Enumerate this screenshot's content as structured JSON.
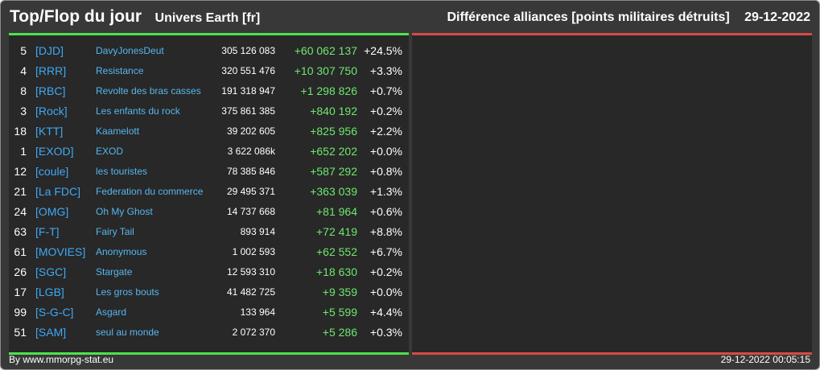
{
  "header": {
    "title": "Top/Flop du jour",
    "server": "Univers Earth [fr]",
    "category": "Différence alliances [points militaires détruits]",
    "date": "29-12-2022"
  },
  "colors": {
    "top_accent": "#4de24d",
    "flop_accent": "#d64b45",
    "tag": "#3fa9f5",
    "name": "#56b6ee",
    "gain": "#6ee86e"
  },
  "top_rows": [
    {
      "rank": "5",
      "tag": "[DJD]",
      "name": "DavyJonesDeut",
      "points": "305 126 083",
      "diff": "+60 062 137",
      "pct": "+24.5%"
    },
    {
      "rank": "4",
      "tag": "[RRR]",
      "name": "Resistance",
      "points": "320 551 476",
      "diff": "+10 307 750",
      "pct": "+3.3%"
    },
    {
      "rank": "8",
      "tag": "[RBC]",
      "name": "Revolte des bras casses",
      "points": "191 318 947",
      "diff": "+1 298 826",
      "pct": "+0.7%"
    },
    {
      "rank": "3",
      "tag": "[Rock]",
      "name": "Les enfants du rock",
      "points": "375 861 385",
      "diff": "+840 192",
      "pct": "+0.2%"
    },
    {
      "rank": "18",
      "tag": "[KTT]",
      "name": "Kaamelott",
      "points": "39 202 605",
      "diff": "+825 956",
      "pct": "+2.2%"
    },
    {
      "rank": "1",
      "tag": "[EXOD]",
      "name": "EXOD",
      "points": "3 622 086k",
      "diff": "+652 202",
      "pct": "+0.0%"
    },
    {
      "rank": "12",
      "tag": "[coule]",
      "name": "les touristes",
      "points": "78 385 846",
      "diff": "+587 292",
      "pct": "+0.8%"
    },
    {
      "rank": "21",
      "tag": "[La FDC]",
      "name": "Federation du commerce",
      "points": "29 495 371",
      "diff": "+363 039",
      "pct": "+1.3%"
    },
    {
      "rank": "24",
      "tag": "[OMG]",
      "name": "Oh My Ghost",
      "points": "14 737 668",
      "diff": "+81 964",
      "pct": "+0.6%"
    },
    {
      "rank": "63",
      "tag": "[F-T]",
      "name": "Fairy Tail",
      "points": "893 914",
      "diff": "+72 419",
      "pct": "+8.8%"
    },
    {
      "rank": "61",
      "tag": "[MOVIES]",
      "name": "Anonymous",
      "points": "1 002 593",
      "diff": "+62 552",
      "pct": "+6.7%"
    },
    {
      "rank": "26",
      "tag": "[SGC]",
      "name": "Stargate",
      "points": "12 593 310",
      "diff": "+18 630",
      "pct": "+0.2%"
    },
    {
      "rank": "17",
      "tag": "[LGB]",
      "name": "Les gros bouts",
      "points": "41 482 725",
      "diff": "+9 359",
      "pct": "+0.0%"
    },
    {
      "rank": "99",
      "tag": "[S-G-C]",
      "name": "Asgard",
      "points": "133 964",
      "diff": "+5 599",
      "pct": "+4.4%"
    },
    {
      "rank": "51",
      "tag": "[SAM]",
      "name": "seul au monde",
      "points": "2 072 370",
      "diff": "+5 286",
      "pct": "+0.3%"
    }
  ],
  "footer": {
    "credit": "By www.mmorpg-stat.eu",
    "timestamp": "29-12-2022 00:05:15"
  }
}
